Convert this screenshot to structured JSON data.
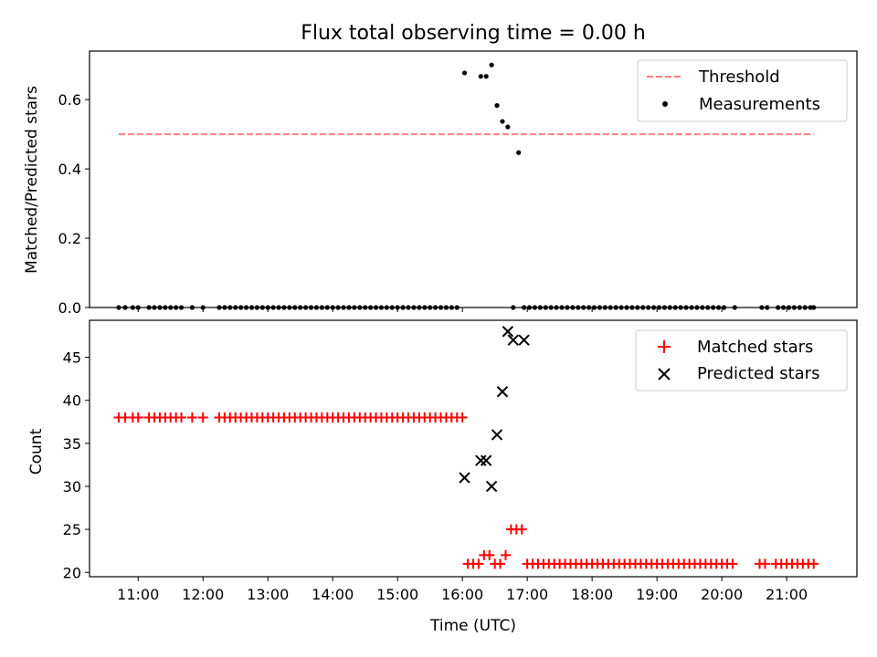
{
  "figure": {
    "title": "Flux total observing time = 0.00 h"
  },
  "colors": {
    "threshold": "#ff7f7f",
    "measurement": "#000000",
    "matched": "#ff0000",
    "predicted": "#000000",
    "axis": "#000000"
  },
  "chart_data": [
    {
      "type": "scatter",
      "panel": "top",
      "ylabel": "Matched/Predicted stars",
      "ylim": [
        0,
        0.74
      ],
      "yticks": [
        0.0,
        0.2,
        0.4,
        0.6
      ],
      "ytick_labels": [
        "0.0",
        "0.2",
        "0.4",
        "0.6"
      ],
      "xlim": [
        "10:15",
        "22:05"
      ],
      "legend": {
        "placement": "top-right",
        "entries": [
          "Threshold",
          "Measurements"
        ]
      },
      "threshold": {
        "name": "Threshold",
        "style": "dashed",
        "x": [
          "10:42",
          "21:25"
        ],
        "y": 0.5
      },
      "series": [
        {
          "name": "Measurements",
          "x": [
            "10:42",
            "10:48",
            "10:55",
            "11:00",
            "11:10",
            "11:15",
            "11:20",
            "11:25",
            "11:30",
            "11:35",
            "11:40",
            "11:50",
            "12:00",
            "12:15",
            "12:20",
            "12:25",
            "12:30",
            "12:35",
            "12:40",
            "12:45",
            "12:50",
            "12:55",
            "13:00",
            "13:05",
            "13:10",
            "13:15",
            "13:20",
            "13:25",
            "13:30",
            "13:35",
            "13:40",
            "13:45",
            "13:50",
            "13:55",
            "14:00",
            "14:05",
            "14:10",
            "14:15",
            "14:20",
            "14:25",
            "14:30",
            "14:35",
            "14:40",
            "14:45",
            "14:50",
            "14:55",
            "15:00",
            "15:05",
            "15:10",
            "15:15",
            "15:20",
            "15:25",
            "15:30",
            "15:35",
            "15:40",
            "15:45",
            "15:50",
            "15:55",
            "16:02",
            "16:17",
            "16:22",
            "16:27",
            "16:32",
            "16:37",
            "16:42",
            "16:47",
            "16:52",
            "16:57",
            "17:02",
            "17:07",
            "17:12",
            "17:17",
            "17:22",
            "17:27",
            "17:32",
            "17:37",
            "17:42",
            "17:47",
            "17:52",
            "17:57",
            "18:02",
            "18:07",
            "18:12",
            "18:17",
            "18:22",
            "18:27",
            "18:32",
            "18:37",
            "18:42",
            "18:47",
            "18:52",
            "18:57",
            "19:02",
            "19:07",
            "19:12",
            "19:17",
            "19:22",
            "19:27",
            "19:32",
            "19:37",
            "19:42",
            "19:47",
            "19:52",
            "19:57",
            "20:02",
            "20:12",
            "20:37",
            "20:42",
            "20:52",
            "20:57",
            "21:02",
            "21:07",
            "21:12",
            "21:17",
            "21:22",
            "21:25"
          ],
          "y": [
            0,
            0,
            0,
            0,
            0,
            0,
            0,
            0,
            0,
            0,
            0,
            0,
            0,
            0,
            0,
            0,
            0,
            0,
            0,
            0,
            0,
            0,
            0,
            0,
            0,
            0,
            0,
            0,
            0,
            0,
            0,
            0,
            0,
            0,
            0,
            0,
            0,
            0,
            0,
            0,
            0,
            0,
            0,
            0,
            0,
            0,
            0,
            0,
            0,
            0,
            0,
            0,
            0,
            0,
            0,
            0,
            0,
            0,
            0.677,
            0.667,
            0.667,
            0.7,
            0.583,
            0.537,
            0.521,
            0,
            0.447,
            0,
            0,
            0,
            0,
            0,
            0,
            0,
            0,
            0,
            0,
            0,
            0,
            0,
            0,
            0,
            0,
            0,
            0,
            0,
            0,
            0,
            0,
            0,
            0,
            0,
            0,
            0,
            0,
            0,
            0,
            0,
            0,
            0,
            0,
            0,
            0,
            0,
            0,
            0,
            0,
            0,
            0,
            0,
            0,
            0,
            0,
            0,
            0,
            0
          ]
        }
      ]
    },
    {
      "type": "scatter",
      "panel": "bottom",
      "xlabel": "Time (UTC)",
      "ylabel": "Count",
      "ylim": [
        19.5,
        49.3
      ],
      "yticks": [
        20,
        25,
        30,
        35,
        40,
        45
      ],
      "ytick_labels": [
        "20",
        "25",
        "30",
        "35",
        "40",
        "45"
      ],
      "xlim": [
        "10:15",
        "22:05"
      ],
      "xticks": [
        "11:00",
        "12:00",
        "13:00",
        "14:00",
        "15:00",
        "16:00",
        "17:00",
        "18:00",
        "19:00",
        "20:00",
        "21:00"
      ],
      "xtick_labels": [
        "11:00",
        "12:00",
        "13:00",
        "14:00",
        "15:00",
        "16:00",
        "17:00",
        "18:00",
        "19:00",
        "20:00",
        "21:00"
      ],
      "legend": {
        "placement": "top-right",
        "entries": [
          "Matched stars",
          "Predicted stars"
        ]
      },
      "series": [
        {
          "name": "Matched stars",
          "marker": "plus",
          "x": [
            "10:42",
            "10:48",
            "10:55",
            "11:00",
            "11:10",
            "11:15",
            "11:20",
            "11:25",
            "11:30",
            "11:35",
            "11:40",
            "11:50",
            "12:00",
            "12:15",
            "12:20",
            "12:25",
            "12:30",
            "12:35",
            "12:40",
            "12:45",
            "12:50",
            "12:55",
            "13:00",
            "13:05",
            "13:10",
            "13:15",
            "13:20",
            "13:25",
            "13:30",
            "13:35",
            "13:40",
            "13:45",
            "13:50",
            "13:55",
            "14:00",
            "14:05",
            "14:10",
            "14:15",
            "14:20",
            "14:25",
            "14:30",
            "14:35",
            "14:40",
            "14:45",
            "14:50",
            "14:55",
            "15:00",
            "15:05",
            "15:10",
            "15:15",
            "15:20",
            "15:25",
            "15:30",
            "15:35",
            "15:40",
            "15:45",
            "15:50",
            "15:55",
            "16:00",
            "16:05",
            "16:10",
            "16:15",
            "16:20",
            "16:25",
            "16:30",
            "16:35",
            "16:40",
            "16:45",
            "16:50",
            "16:55",
            "17:00",
            "17:05",
            "17:10",
            "17:15",
            "17:20",
            "17:25",
            "17:30",
            "17:35",
            "17:40",
            "17:45",
            "17:50",
            "17:55",
            "18:00",
            "18:05",
            "18:10",
            "18:15",
            "18:20",
            "18:25",
            "18:30",
            "18:35",
            "18:40",
            "18:45",
            "18:50",
            "18:55",
            "19:00",
            "19:05",
            "19:10",
            "19:15",
            "19:20",
            "19:25",
            "19:30",
            "19:35",
            "19:40",
            "19:45",
            "19:50",
            "19:55",
            "20:00",
            "20:05",
            "20:10",
            "20:35",
            "20:40",
            "20:50",
            "20:55",
            "21:00",
            "21:05",
            "21:10",
            "21:15",
            "21:20",
            "21:25"
          ],
          "y": [
            38,
            38,
            38,
            38,
            38,
            38,
            38,
            38,
            38,
            38,
            38,
            38,
            38,
            38,
            38,
            38,
            38,
            38,
            38,
            38,
            38,
            38,
            38,
            38,
            38,
            38,
            38,
            38,
            38,
            38,
            38,
            38,
            38,
            38,
            38,
            38,
            38,
            38,
            38,
            38,
            38,
            38,
            38,
            38,
            38,
            38,
            38,
            38,
            38,
            38,
            38,
            38,
            38,
            38,
            38,
            38,
            38,
            38,
            38,
            21,
            21,
            21,
            22,
            22,
            21,
            21,
            22,
            25,
            25,
            25,
            21,
            21,
            21,
            21,
            21,
            21,
            21,
            21,
            21,
            21,
            21,
            21,
            21,
            21,
            21,
            21,
            21,
            21,
            21,
            21,
            21,
            21,
            21,
            21,
            21,
            21,
            21,
            21,
            21,
            21,
            21,
            21,
            21,
            21,
            21,
            21,
            21,
            21,
            21,
            21,
            21,
            21,
            21,
            21,
            21,
            21,
            21,
            21,
            21
          ]
        },
        {
          "name": "Predicted stars",
          "marker": "x",
          "x": [
            "16:02",
            "16:17",
            "16:22",
            "16:27",
            "16:32",
            "16:37",
            "16:42",
            "16:47",
            "16:57"
          ],
          "y": [
            31,
            33,
            33,
            30,
            36,
            41,
            48,
            47,
            47
          ]
        }
      ]
    }
  ]
}
